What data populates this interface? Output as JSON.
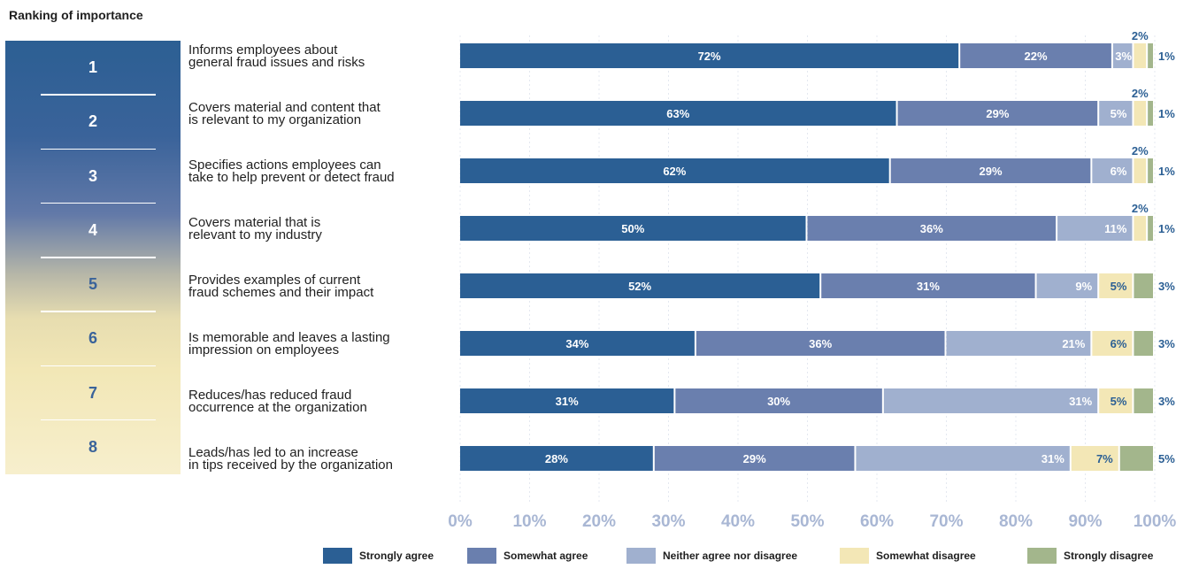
{
  "heading": "Ranking of importance",
  "colors": {
    "strongly_agree": "#2b5f94",
    "somewhat_agree": "#6a7fae",
    "neither": "#a0b0cf",
    "somewhat_disagree": "#f3e7b6",
    "strongly_disagree": "#a3b68c",
    "axis_tick": "#a9b7d4",
    "label_dark": "#2b5f94",
    "label_light": "#ffffff"
  },
  "ranks": [
    "1",
    "2",
    "3",
    "4",
    "5",
    "6",
    "7",
    "8"
  ],
  "chart_data": {
    "type": "bar",
    "orientation": "horizontal",
    "stacked": true,
    "categories": [
      [
        "Informs employees about",
        "general fraud issues and risks"
      ],
      [
        "Covers material and content that",
        "is relevant to my organization"
      ],
      [
        "Specifies actions employees can",
        "take to help prevent or detect fraud"
      ],
      [
        "Covers material that is",
        "relevant to my industry"
      ],
      [
        "Provides examples of current",
        "fraud schemes and their impact"
      ],
      [
        "Is memorable and leaves a lasting",
        "impression on employees"
      ],
      [
        "Reduces/has reduced fraud",
        "occurrence at the organization"
      ],
      [
        "Leads/has led to an increase",
        "in tips received by the organization"
      ]
    ],
    "series": [
      {
        "name": "Strongly agree",
        "values": [
          72,
          63,
          62,
          50,
          52,
          34,
          31,
          28
        ]
      },
      {
        "name": "Somewhat agree",
        "values": [
          22,
          29,
          29,
          36,
          31,
          36,
          30,
          29
        ]
      },
      {
        "name": "Neither agree nor disagree",
        "values": [
          3,
          5,
          6,
          11,
          9,
          21,
          31,
          31
        ]
      },
      {
        "name": "Somewhat disagree",
        "values": [
          2,
          2,
          2,
          2,
          5,
          6,
          5,
          7
        ]
      },
      {
        "name": "Strongly disagree",
        "values": [
          1,
          1,
          1,
          1,
          3,
          3,
          3,
          5
        ]
      }
    ],
    "xticks": [
      "0%",
      "10%",
      "20%",
      "30%",
      "40%",
      "50%",
      "60%",
      "70%",
      "80%",
      "90%",
      "100%"
    ],
    "xlim": [
      0,
      100
    ],
    "grid": true,
    "legend_position": "bottom"
  }
}
